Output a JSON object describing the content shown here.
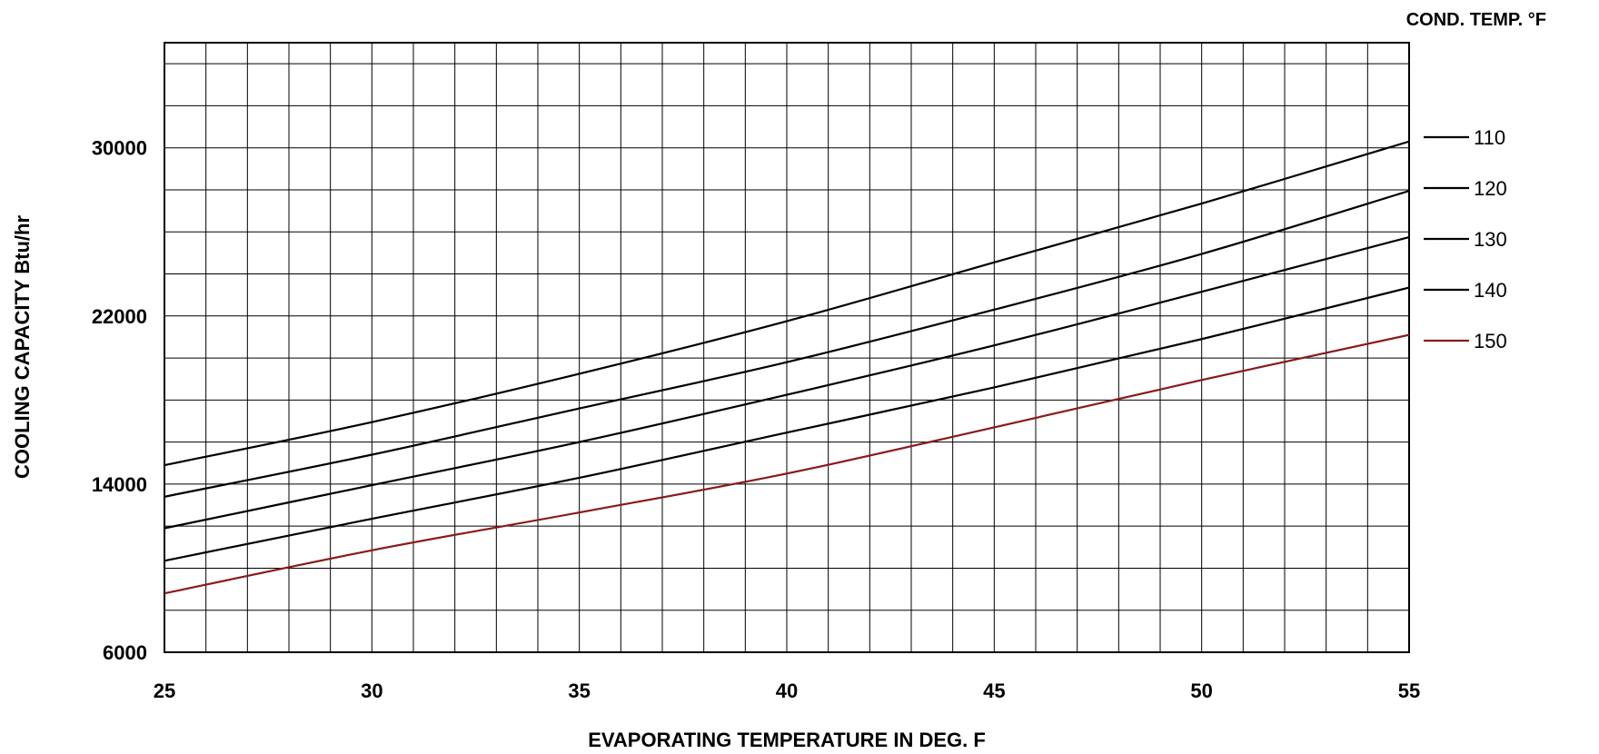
{
  "chart_data": {
    "type": "line",
    "title": "",
    "xlabel": "EVAPORATING TEMPERATURE IN  DEG. F",
    "ylabel": "COOLING CAPACITY Btu/hr",
    "legend_title": "COND. TEMP. °F",
    "legend_position": "right",
    "grid": true,
    "xlim": [
      25,
      55
    ],
    "ylim": [
      6000,
      35000
    ],
    "x_ticks": [
      "25",
      "30",
      "35",
      "40",
      "45",
      "50",
      "55"
    ],
    "y_ticks": [
      "6000",
      "14000",
      "22000",
      "30000"
    ],
    "x": [
      25,
      30,
      35,
      40,
      45,
      50,
      55
    ],
    "series": [
      {
        "name": "110",
        "color": "#000000",
        "values": [
          14900,
          16950,
          19250,
          21750,
          24550,
          27350,
          30300
        ]
      },
      {
        "name": "120",
        "color": "#000000",
        "values": [
          13400,
          15400,
          17600,
          19800,
          22300,
          24950,
          27950
        ]
      },
      {
        "name": "130",
        "color": "#000000",
        "values": [
          11900,
          13950,
          16000,
          18250,
          20600,
          23150,
          25750
        ]
      },
      {
        "name": "140",
        "color": "#000000",
        "values": [
          10350,
          12350,
          14300,
          16450,
          18600,
          20900,
          23350
        ]
      },
      {
        "name": "150",
        "color": "#8b1a1a",
        "values": [
          8800,
          10850,
          12650,
          14500,
          16700,
          18950,
          21100
        ]
      }
    ]
  }
}
